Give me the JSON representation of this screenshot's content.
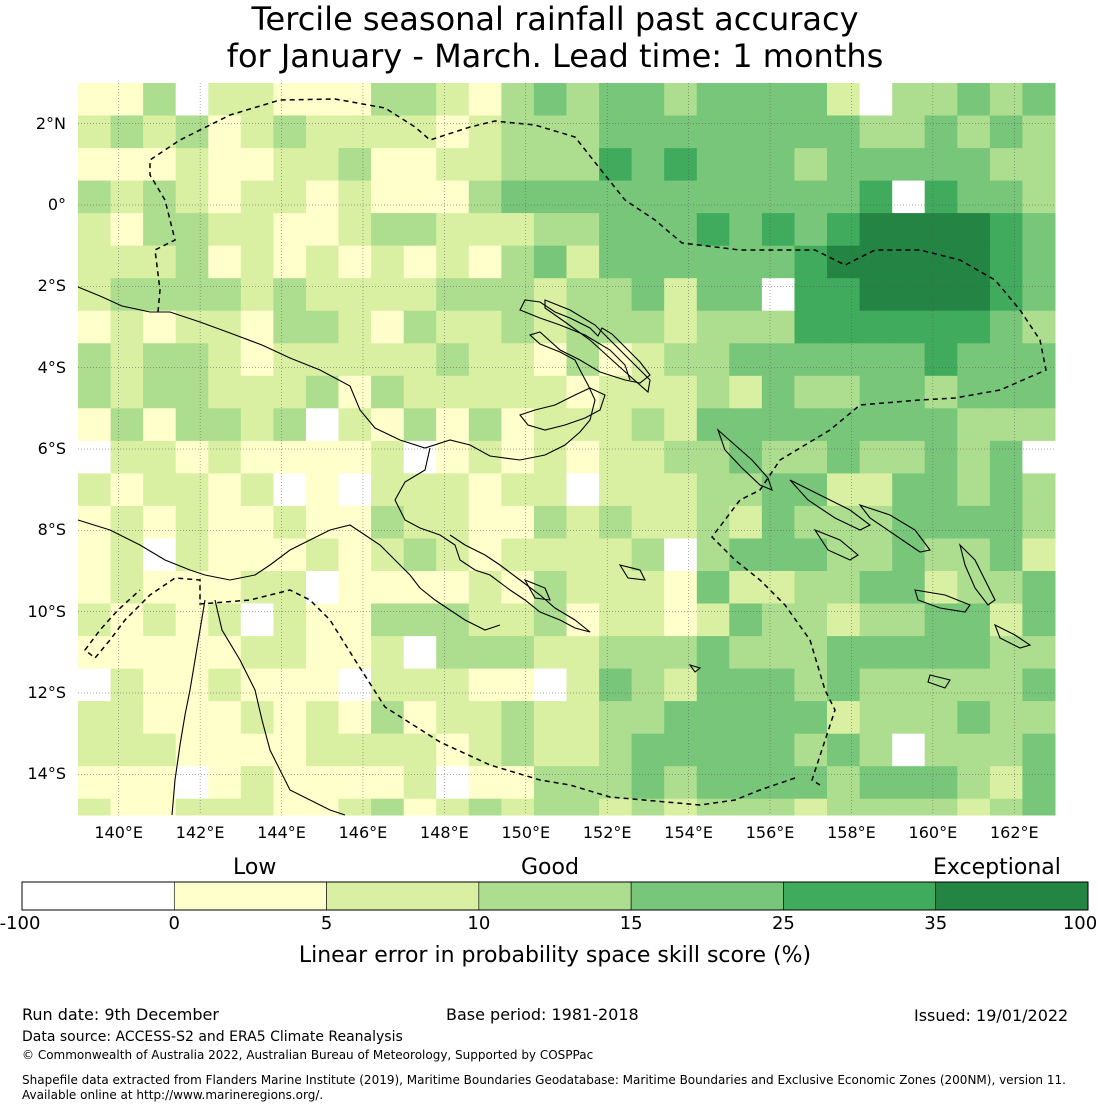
{
  "title": {
    "line1": "Tercile seasonal rainfall past accuracy",
    "line2": "for January - March. Lead time: 1 months"
  },
  "map": {
    "lat_range": [
      -15,
      3
    ],
    "lon_range": [
      139,
      163
    ],
    "lat_ticks": [
      {
        "value": 2,
        "label": "2°N"
      },
      {
        "value": 0,
        "label": "0°"
      },
      {
        "value": -2,
        "label": "2°S"
      },
      {
        "value": -4,
        "label": "4°S"
      },
      {
        "value": -6,
        "label": "6°S"
      },
      {
        "value": -8,
        "label": "8°S"
      },
      {
        "value": -10,
        "label": "10°S"
      },
      {
        "value": -12,
        "label": "12°S"
      },
      {
        "value": -14,
        "label": "14°S"
      }
    ],
    "lon_ticks": [
      {
        "value": 140,
        "label": "140°E"
      },
      {
        "value": 142,
        "label": "142°E"
      },
      {
        "value": 144,
        "label": "144°E"
      },
      {
        "value": 146,
        "label": "146°E"
      },
      {
        "value": 148,
        "label": "148°E"
      },
      {
        "value": 150,
        "label": "150°E"
      },
      {
        "value": 152,
        "label": "152°E"
      },
      {
        "value": 154,
        "label": "154°E"
      },
      {
        "value": 156,
        "label": "156°E"
      },
      {
        "value": 158,
        "label": "158°E"
      },
      {
        "value": 160,
        "label": "160°E"
      },
      {
        "value": 162,
        "label": "162°E"
      }
    ]
  },
  "colorbar": {
    "categories": [
      {
        "label": "Low",
        "value": 2.5
      },
      {
        "label": "Good",
        "value": 10
      },
      {
        "label": "Exceptional",
        "value": 60
      }
    ],
    "ticks": [
      "-100",
      "0",
      "5",
      "10",
      "15",
      "25",
      "35",
      "100"
    ],
    "bins": [
      {
        "from": -100,
        "to": 0,
        "color": "#ffffff"
      },
      {
        "from": 0,
        "to": 5,
        "color": "#ffffcc"
      },
      {
        "from": 5,
        "to": 10,
        "color": "#d9f0a3"
      },
      {
        "from": 10,
        "to": 15,
        "color": "#addd8e"
      },
      {
        "from": 15,
        "to": 25,
        "color": "#78c679"
      },
      {
        "from": 25,
        "to": 35,
        "color": "#41ab5d"
      },
      {
        "from": 35,
        "to": 100,
        "color": "#238443"
      }
    ],
    "title": "Linear error in probability space skill score (%)"
  },
  "footer": {
    "run_date": "Run date: 9th December",
    "base_period": "Base period: 1981-2018",
    "issued": "Issued: 19/01/2022",
    "data_source": "Data source: ACCESS-S2 and ERA5 Climate Reanalysis",
    "copyright": "© Commonwealth of Australia 2022, Australian Bureau of Meteorology, Supported by COSPPac",
    "shapefile_line1": "Shapefile data extracted from Flanders Marine Institute (2019), Maritime Boundaries Geodatabase: Maritime Boundaries and Exclusive Economic Zones (200NM), version 11.",
    "shapefile_line2": "Available online at http://www.marineregions.org/."
  }
}
